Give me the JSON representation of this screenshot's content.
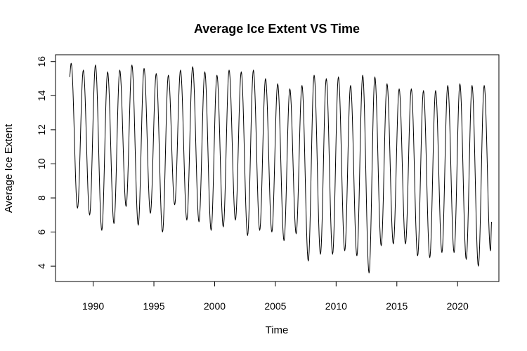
{
  "chart_data": {
    "type": "line",
    "title": "Average Ice Extent VS Time",
    "xlabel": "Time",
    "ylabel": "Average Ice Extent",
    "xlim": [
      1986.9,
      2023.4
    ],
    "ylim": [
      3.1,
      16.4
    ],
    "x_ticks": [
      1990,
      1995,
      2000,
      2005,
      2010,
      2015,
      2020
    ],
    "y_ticks": [
      4,
      6,
      8,
      10,
      12,
      14,
      16
    ],
    "grid": false,
    "line_color": "#000000",
    "series": [
      {
        "name": "",
        "annual_max": [
          15.9,
          15.5,
          15.8,
          15.4,
          15.5,
          15.8,
          15.6,
          15.3,
          15.2,
          15.5,
          15.7,
          15.4,
          15.2,
          15.5,
          15.4,
          15.5,
          15.0,
          14.7,
          14.4,
          14.6,
          15.2,
          15.0,
          15.1,
          14.6,
          15.2,
          15.1,
          14.7,
          14.4,
          14.4,
          14.3,
          14.3,
          14.6,
          14.7,
          14.6,
          14.6
        ],
        "annual_min": [
          7.4,
          7.0,
          6.1,
          6.5,
          7.5,
          6.4,
          7.1,
          6.0,
          7.6,
          6.7,
          6.6,
          6.1,
          6.3,
          6.7,
          5.8,
          6.1,
          6.0,
          5.5,
          5.9,
          4.3,
          4.7,
          4.7,
          4.9,
          4.6,
          3.6,
          5.2,
          5.3,
          5.3,
          4.6,
          4.5,
          4.8,
          4.8,
          4.4,
          4.0,
          4.9
        ],
        "start": 15.1,
        "end": 6.6
      }
    ]
  }
}
